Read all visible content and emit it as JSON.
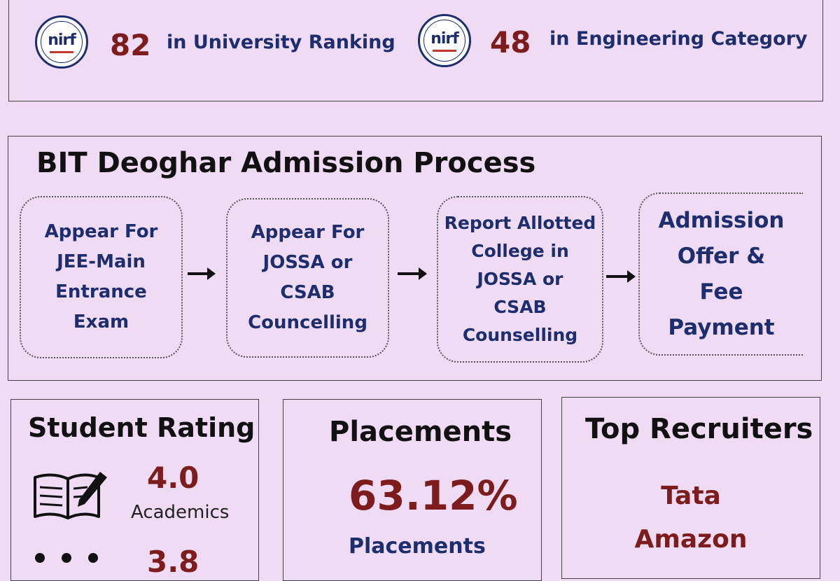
{
  "rankings": [
    {
      "logo_text": "nirf",
      "number": "82",
      "label": "in University Ranking"
    },
    {
      "logo_text": "nirf",
      "number": "48",
      "label": "in Engineering Category"
    }
  ],
  "process": {
    "title": "BIT Deoghar Admission Process",
    "steps": [
      {
        "lines": [
          "Appear For",
          "JEE-Main",
          "Entrance",
          "Exam"
        ]
      },
      {
        "lines": [
          "Appear For",
          "JOSSA or",
          "CSAB",
          "Councelling"
        ]
      },
      {
        "lines": [
          "Report Allotted",
          "College in",
          "JOSSA or",
          "CSAB",
          "Counselling"
        ]
      },
      {
        "lines": [
          "Admission",
          "Offer &",
          "Fee",
          "Payment"
        ]
      }
    ]
  },
  "student_rating": {
    "title": "Student Rating",
    "items": [
      {
        "value": "4.0",
        "label": "Academics",
        "icon": "book-pen-icon"
      },
      {
        "value": "3.8",
        "icon": "people-icon"
      }
    ]
  },
  "placements": {
    "title": "Placements",
    "percentage": "63.12%",
    "label": "Placements"
  },
  "top_recruiters": {
    "title": "Top Recruiters",
    "companies": [
      "Tata",
      "Amazon"
    ]
  },
  "colors": {
    "background": "#efdbf3",
    "navy": "#1d2d6e",
    "maroon": "#7d1c1c"
  }
}
